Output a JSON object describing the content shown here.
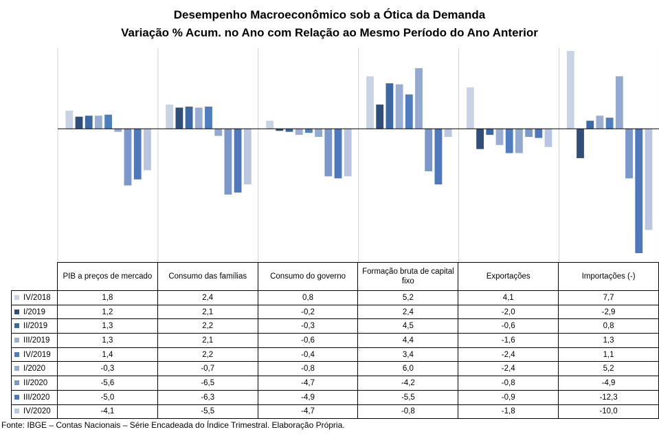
{
  "title": {
    "line1": "Desempenho Macroeconômico sob a Ótica da Demanda",
    "line2": "Variação % Acum. no Ano com Relação ao Mesmo Período do Ano Anterior"
  },
  "source": "Fonte: IBGE – Contas Nacionais – Série Encadeada do Índice Trimestral. Elaboração Própria.",
  "colors": {
    "IV/2018": "#c9d3e6",
    "I/2019": "#2f4f7a",
    "II/2019": "#3d68a6",
    "III/2019": "#9aaed4",
    "IV/2019": "#4e7ec0",
    "I/2020": "#93a9d0",
    "II/2020": "#7b97cb",
    "III/2020": "#4f78bc",
    "IV/2020": "#b8c6e2"
  },
  "chart_data": {
    "type": "bar",
    "categories": [
      "PIB a preços de mercado",
      "Consumo das famílias",
      "Consumo do governo",
      "Formação bruta de capital fixo",
      "Exportações",
      "Importações (-)"
    ],
    "series": [
      {
        "name": "IV/2018",
        "values": [
          1.8,
          2.4,
          0.8,
          5.2,
          4.1,
          7.7
        ]
      },
      {
        "name": "I/2019",
        "values": [
          1.2,
          2.1,
          -0.2,
          2.4,
          -2.0,
          -2.9
        ]
      },
      {
        "name": "II/2019",
        "values": [
          1.3,
          2.2,
          -0.3,
          4.5,
          -0.6,
          0.8
        ]
      },
      {
        "name": "III/2019",
        "values": [
          1.3,
          2.1,
          -0.6,
          4.4,
          -1.6,
          1.3
        ]
      },
      {
        "name": "IV/2019",
        "values": [
          1.4,
          2.2,
          -0.4,
          3.4,
          -2.4,
          1.1
        ]
      },
      {
        "name": "I/2020",
        "values": [
          -0.3,
          -0.7,
          -0.8,
          6.0,
          -2.4,
          5.2
        ]
      },
      {
        "name": "II/2020",
        "values": [
          -5.6,
          -6.5,
          -4.7,
          -4.2,
          -0.8,
          -4.9
        ]
      },
      {
        "name": "III/2020",
        "values": [
          -5.0,
          -6.3,
          -4.9,
          -5.5,
          -0.9,
          -12.3
        ]
      },
      {
        "name": "IV/2020",
        "values": [
          -4.1,
          -5.5,
          -4.7,
          -0.8,
          -1.8,
          -10.0
        ]
      }
    ],
    "table": {
      "header": [
        "PIB a preços de mercado",
        "Consumo das famílias",
        "Consumo do governo",
        "Formação bruta de capital fixo",
        "Exportações",
        "Importações (-)"
      ],
      "rows": [
        {
          "label": "IV/2018",
          "cells": [
            "1,8",
            "2,4",
            "0,8",
            "5,2",
            "4,1",
            "7,7"
          ]
        },
        {
          "label": "I/2019",
          "cells": [
            "1,2",
            "2,1",
            "-0,2",
            "2,4",
            "-2,0",
            "-2,9"
          ]
        },
        {
          "label": "II/2019",
          "cells": [
            "1,3",
            "2,2",
            "-0,3",
            "4,5",
            "-0,6",
            "0,8"
          ]
        },
        {
          "label": "III/2019",
          "cells": [
            "1,3",
            "2,1",
            "-0,6",
            "4,4",
            "-1,6",
            "1,3"
          ]
        },
        {
          "label": "IV/2019",
          "cells": [
            "1,4",
            "2,2",
            "-0,4",
            "3,4",
            "-2,4",
            "1,1"
          ]
        },
        {
          "label": "I/2020",
          "cells": [
            "-0,3",
            "-0,7",
            "-0,8",
            "6,0",
            "-2,4",
            "5,2"
          ]
        },
        {
          "label": "II/2020",
          "cells": [
            "-5,6",
            "-6,5",
            "-4,7",
            "-4,2",
            "-0,8",
            "-4,9"
          ]
        },
        {
          "label": "III/2020",
          "cells": [
            "-5,0",
            "-6,3",
            "-4,9",
            "-5,5",
            "-0,9",
            "-12,3"
          ]
        },
        {
          "label": "IV/2020",
          "cells": [
            "-4,1",
            "-5,5",
            "-4,7",
            "-0,8",
            "-1,8",
            "-10,0"
          ]
        }
      ]
    }
  }
}
